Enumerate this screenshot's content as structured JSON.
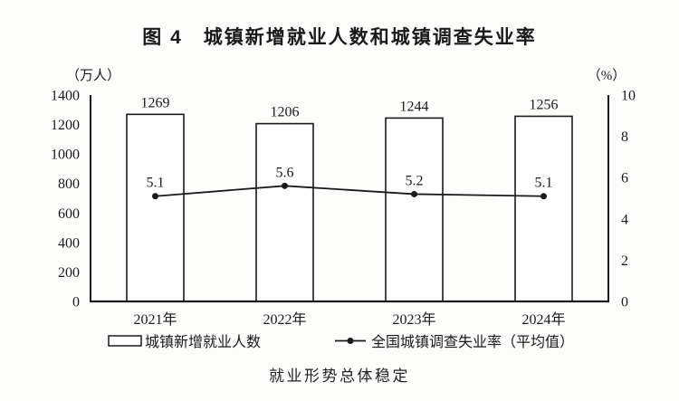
{
  "title": "图 4　城镇新增就业人数和城镇调查失业率",
  "caption": "就业形势总体稳定",
  "chart_data": {
    "type": "combo_bar_line",
    "title": "图 4　城镇新增就业人数和城镇调查失业率",
    "categories": [
      "2021年",
      "2022年",
      "2023年",
      "2024年"
    ],
    "series": [
      {
        "name": "城镇新增就业人数",
        "type": "bar",
        "axis": "left",
        "values": [
          1269,
          1206,
          1244,
          1256
        ],
        "fill": "#ffffff",
        "stroke": "#1a1a1a"
      },
      {
        "name": "全国城镇调查失业率（平均值）",
        "type": "line",
        "axis": "right",
        "values": [
          5.1,
          5.6,
          5.2,
          5.1
        ],
        "color": "#1a1a1a"
      }
    ],
    "left_axis": {
      "unit": "（万人）",
      "min": 0,
      "max": 1400,
      "ticks": [
        0,
        200,
        400,
        600,
        800,
        1000,
        1200,
        1400
      ]
    },
    "right_axis": {
      "unit": "（%）",
      "min": 0,
      "max": 10,
      "ticks": [
        0,
        2,
        4,
        6,
        8,
        10
      ]
    },
    "legend_position": "bottom",
    "grid": false,
    "data_labels": true,
    "ink_color": "#1a1a1a",
    "background": "#fdfdfc"
  }
}
